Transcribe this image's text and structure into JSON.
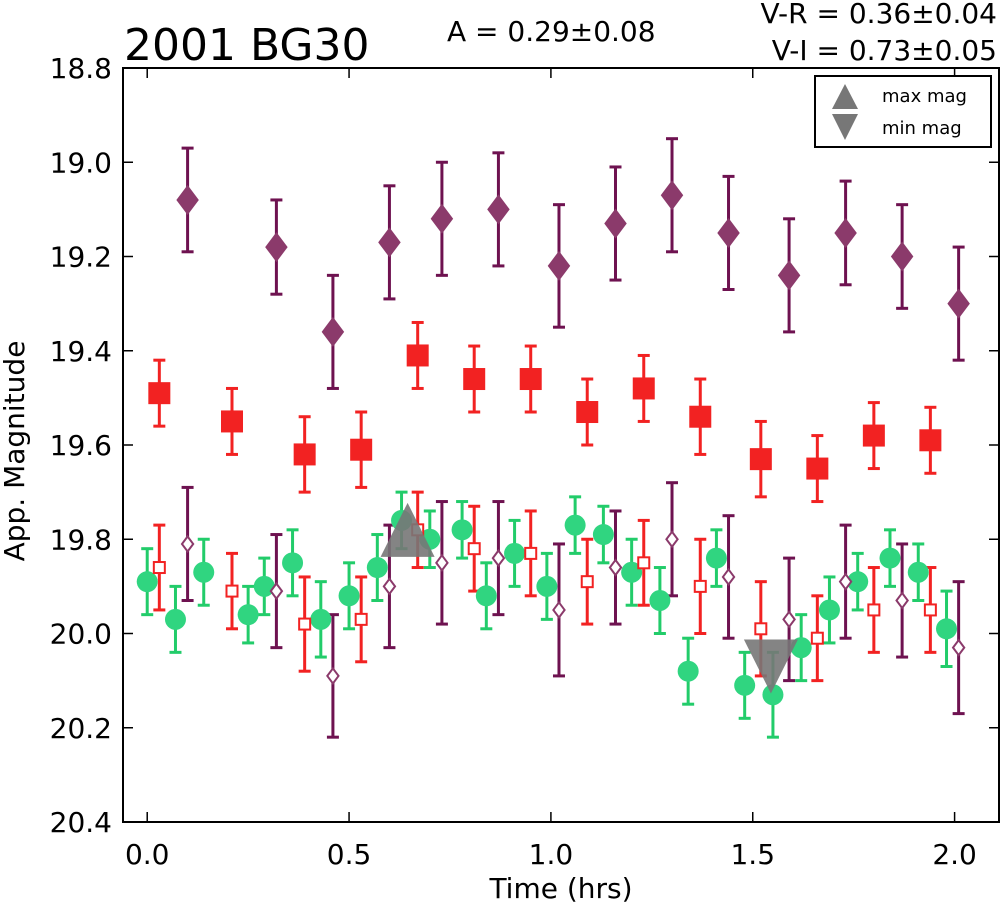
{
  "chart_data": {
    "type": "scatter",
    "title": "2001 BG30",
    "annotations": {
      "amplitude": "A  = 0.29±0.08",
      "v_r": "V-R = 0.36±0.04",
      "v_i": "V-I  = 0.73±0.05"
    },
    "xlabel": "Time (hrs)",
    "ylabel": "App. Magnitude",
    "xlim": [
      -0.06,
      2.11
    ],
    "ylim": [
      20.4,
      18.8
    ],
    "y_inverted": true,
    "grid": false,
    "xticks": [
      0.0,
      0.5,
      1.0,
      1.5,
      2.0
    ],
    "xtick_labels": [
      "0.0",
      "0.5",
      "1.0",
      "1.5",
      "2.0"
    ],
    "yticks": [
      18.8,
      19.0,
      19.2,
      19.4,
      19.6,
      19.8,
      20.0,
      20.2,
      20.4
    ],
    "ytick_labels": [
      "18.8",
      "19.0",
      "19.2",
      "19.4",
      "19.6",
      "19.8",
      "20.0",
      "20.2",
      "20.4"
    ],
    "legend": {
      "position": "top-right",
      "entries": [
        {
          "label": "max mag",
          "marker": "triangle-up",
          "color": "#777777"
        },
        {
          "label": "min mag",
          "marker": "triangle-down",
          "color": "#777777"
        }
      ]
    },
    "extremes": [
      {
        "name": "max mag",
        "x": 0.645,
        "y": 19.78
      },
      {
        "name": "min mag",
        "x": 1.545,
        "y": 20.07
      }
    ],
    "colors": {
      "diamond": "#8b3a6b",
      "diamond_err": "#6e1250",
      "square": "#f22222",
      "circle": "#30d580",
      "circle_err": "#22cc6a",
      "marker_gray": "#777777"
    },
    "series": [
      {
        "marker": "diamond-filled",
        "color": "#8b3a6b",
        "points": [
          {
            "x": 0.1,
            "y": 19.08,
            "err": 0.11
          },
          {
            "x": 0.32,
            "y": 19.18,
            "err": 0.1
          },
          {
            "x": 0.46,
            "y": 19.36,
            "err": 0.12
          },
          {
            "x": 0.6,
            "y": 19.17,
            "err": 0.12
          },
          {
            "x": 0.73,
            "y": 19.12,
            "err": 0.12
          },
          {
            "x": 0.87,
            "y": 19.1,
            "err": 0.12
          },
          {
            "x": 1.02,
            "y": 19.22,
            "err": 0.13
          },
          {
            "x": 1.16,
            "y": 19.13,
            "err": 0.12
          },
          {
            "x": 1.3,
            "y": 19.07,
            "err": 0.12
          },
          {
            "x": 1.44,
            "y": 19.15,
            "err": 0.12
          },
          {
            "x": 1.59,
            "y": 19.24,
            "err": 0.12
          },
          {
            "x": 1.73,
            "y": 19.15,
            "err": 0.11
          },
          {
            "x": 1.87,
            "y": 19.2,
            "err": 0.11
          },
          {
            "x": 2.01,
            "y": 19.3,
            "err": 0.12
          }
        ]
      },
      {
        "marker": "square-filled",
        "color": "#f22222",
        "points": [
          {
            "x": 0.03,
            "y": 19.49,
            "err": 0.07
          },
          {
            "x": 0.21,
            "y": 19.55,
            "err": 0.07
          },
          {
            "x": 0.39,
            "y": 19.62,
            "err": 0.08
          },
          {
            "x": 0.53,
            "y": 19.61,
            "err": 0.08
          },
          {
            "x": 0.67,
            "y": 19.41,
            "err": 0.07
          },
          {
            "x": 0.81,
            "y": 19.46,
            "err": 0.07
          },
          {
            "x": 0.95,
            "y": 19.46,
            "err": 0.07
          },
          {
            "x": 1.09,
            "y": 19.53,
            "err": 0.07
          },
          {
            "x": 1.23,
            "y": 19.48,
            "err": 0.07
          },
          {
            "x": 1.37,
            "y": 19.54,
            "err": 0.08
          },
          {
            "x": 1.52,
            "y": 19.63,
            "err": 0.08
          },
          {
            "x": 1.66,
            "y": 19.65,
            "err": 0.07
          },
          {
            "x": 1.8,
            "y": 19.58,
            "err": 0.07
          },
          {
            "x": 1.94,
            "y": 19.59,
            "err": 0.07
          }
        ]
      },
      {
        "marker": "circle-filled",
        "color": "#30d580",
        "points": [
          {
            "x": 0.0,
            "y": 19.89,
            "err": 0.07
          },
          {
            "x": 0.07,
            "y": 19.97,
            "err": 0.07
          },
          {
            "x": 0.14,
            "y": 19.87,
            "err": 0.07
          },
          {
            "x": 0.25,
            "y": 19.96,
            "err": 0.06
          },
          {
            "x": 0.29,
            "y": 19.9,
            "err": 0.06
          },
          {
            "x": 0.36,
            "y": 19.85,
            "err": 0.07
          },
          {
            "x": 0.43,
            "y": 19.97,
            "err": 0.08
          },
          {
            "x": 0.5,
            "y": 19.92,
            "err": 0.07
          },
          {
            "x": 0.57,
            "y": 19.86,
            "err": 0.07
          },
          {
            "x": 0.63,
            "y": 19.76,
            "err": 0.06
          },
          {
            "x": 0.7,
            "y": 19.8,
            "err": 0.06
          },
          {
            "x": 0.78,
            "y": 19.78,
            "err": 0.06
          },
          {
            "x": 0.84,
            "y": 19.92,
            "err": 0.07
          },
          {
            "x": 0.91,
            "y": 19.83,
            "err": 0.07
          },
          {
            "x": 0.99,
            "y": 19.9,
            "err": 0.07
          },
          {
            "x": 1.06,
            "y": 19.77,
            "err": 0.06
          },
          {
            "x": 1.13,
            "y": 19.79,
            "err": 0.06
          },
          {
            "x": 1.2,
            "y": 19.87,
            "err": 0.07
          },
          {
            "x": 1.27,
            "y": 19.93,
            "err": 0.07
          },
          {
            "x": 1.34,
            "y": 20.08,
            "err": 0.07
          },
          {
            "x": 1.41,
            "y": 19.84,
            "err": 0.06
          },
          {
            "x": 1.48,
            "y": 20.11,
            "err": 0.07
          },
          {
            "x": 1.55,
            "y": 20.13,
            "err": 0.09
          },
          {
            "x": 1.62,
            "y": 20.03,
            "err": 0.07
          },
          {
            "x": 1.69,
            "y": 19.95,
            "err": 0.07
          },
          {
            "x": 1.76,
            "y": 19.89,
            "err": 0.06
          },
          {
            "x": 1.84,
            "y": 19.84,
            "err": 0.06
          },
          {
            "x": 1.91,
            "y": 19.87,
            "err": 0.06
          },
          {
            "x": 1.98,
            "y": 19.99,
            "err": 0.08
          }
        ]
      },
      {
        "marker": "square-open",
        "color": "#f22222",
        "points": [
          {
            "x": 0.03,
            "y": 19.86,
            "err": 0.09
          },
          {
            "x": 0.21,
            "y": 19.91,
            "err": 0.08
          },
          {
            "x": 0.39,
            "y": 19.98,
            "err": 0.1
          },
          {
            "x": 0.53,
            "y": 19.97,
            "err": 0.09
          },
          {
            "x": 0.67,
            "y": 19.78,
            "err": 0.08
          },
          {
            "x": 0.81,
            "y": 19.82,
            "err": 0.09
          },
          {
            "x": 0.95,
            "y": 19.83,
            "err": 0.09
          },
          {
            "x": 1.09,
            "y": 19.89,
            "err": 0.09
          },
          {
            "x": 1.23,
            "y": 19.85,
            "err": 0.09
          },
          {
            "x": 1.37,
            "y": 19.9,
            "err": 0.1
          },
          {
            "x": 1.52,
            "y": 19.99,
            "err": 0.1
          },
          {
            "x": 1.66,
            "y": 20.01,
            "err": 0.09
          },
          {
            "x": 1.8,
            "y": 19.95,
            "err": 0.09
          },
          {
            "x": 1.94,
            "y": 19.95,
            "err": 0.09
          }
        ]
      },
      {
        "marker": "diamond-open",
        "color": "#8b3a6b",
        "points": [
          {
            "x": 0.1,
            "y": 19.81,
            "err": 0.12
          },
          {
            "x": 0.32,
            "y": 19.91,
            "err": 0.12
          },
          {
            "x": 0.46,
            "y": 20.09,
            "err": 0.13
          },
          {
            "x": 0.6,
            "y": 19.9,
            "err": 0.13
          },
          {
            "x": 0.73,
            "y": 19.85,
            "err": 0.13
          },
          {
            "x": 0.87,
            "y": 19.84,
            "err": 0.12
          },
          {
            "x": 1.02,
            "y": 19.95,
            "err": 0.14
          },
          {
            "x": 1.16,
            "y": 19.86,
            "err": 0.12
          },
          {
            "x": 1.3,
            "y": 19.8,
            "err": 0.12
          },
          {
            "x": 1.44,
            "y": 19.88,
            "err": 0.13
          },
          {
            "x": 1.59,
            "y": 19.97,
            "err": 0.13
          },
          {
            "x": 1.73,
            "y": 19.89,
            "err": 0.12
          },
          {
            "x": 1.87,
            "y": 19.93,
            "err": 0.12
          },
          {
            "x": 2.01,
            "y": 20.03,
            "err": 0.14
          }
        ]
      }
    ]
  }
}
